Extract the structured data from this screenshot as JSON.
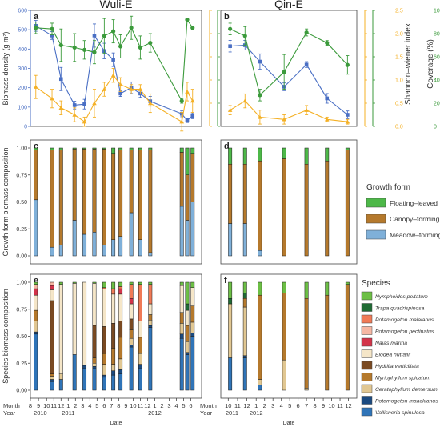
{
  "colors": {
    "density": "#4a6fc4",
    "shannon": "#f4b025",
    "coverage": "#3b9a3b",
    "floating": "#4db848",
    "canopy": "#b5792c",
    "meadow": "#7fb0d9",
    "axis": "#444444"
  },
  "chart_data": [
    {
      "id": "a",
      "panel_label": "a",
      "type": "line",
      "title": "Wuli-E",
      "ylabel": "Biomass density (g m²)",
      "y_ticks": [
        "0",
        "100",
        "200",
        "300",
        "400",
        "500",
        "600"
      ],
      "ylim": [
        0,
        600
      ],
      "series": [
        {
          "key": "density",
          "values": [
            520,
            470,
            245,
            110,
            115,
            470,
            390,
            345,
            170,
            200,
            170,
            130,
            65,
            30,
            55
          ],
          "err": [
            28,
            20,
            60,
            20,
            25,
            60,
            40,
            35,
            15,
            30,
            20,
            25,
            15,
            10,
            15
          ]
        },
        {
          "key": "shannon",
          "values": [
            0.85,
            0.6,
            0.4,
            0.25,
            0.1,
            0.5,
            0.8,
            1.1,
            0.9,
            0.8,
            0.8,
            0.5,
            0.1,
            0.75,
            0.55
          ],
          "err": [
            0.25,
            0.2,
            0.15,
            0.15,
            0.1,
            0.3,
            0.15,
            0.15,
            0.15,
            0.1,
            0.1,
            0.2,
            0.2,
            0.2,
            0.25
          ]
        },
        {
          "key": "coverage",
          "values": [
            85,
            84,
            70,
            68,
            66,
            64,
            78,
            82,
            69,
            85,
            68,
            72,
            22,
            92,
            85
          ],
          "err": [
            5,
            5,
            14,
            12,
            8,
            10,
            15,
            10,
            10,
            10,
            10,
            8,
            2,
            0,
            0
          ]
        }
      ],
      "x": [
        0,
        1.8,
        2.8,
        4.3,
        5.4,
        6.5,
        7.6,
        8.6,
        9.4,
        10.6,
        11.6,
        12.7,
        16.2,
        16.8,
        17.4
      ],
      "xlim": [
        -0.6,
        18.4
      ]
    },
    {
      "id": "b",
      "panel_label": "b",
      "type": "line",
      "title": "Qin-E",
      "ylabel": "Shannon–wiener index",
      "y2label": "Coverage (%)",
      "y_ticks": [
        "0.0",
        "0.5",
        "1.0",
        "1.5",
        "2.0",
        "2.5"
      ],
      "ylim": [
        0,
        2.5
      ],
      "y3_ticks": [
        "0",
        "20",
        "40",
        "60",
        "80",
        "100"
      ],
      "y3lim": [
        0,
        100
      ],
      "series": [
        {
          "key": "density",
          "values": [
            415,
            420,
            335,
            205,
            320,
            145,
            60
          ],
          "err": [
            30,
            25,
            40,
            20,
            15,
            25,
            20
          ]
        },
        {
          "key": "shannon",
          "values": [
            0.35,
            0.55,
            0.2,
            0.15,
            0.35,
            0.15,
            0.1
          ],
          "err": [
            0.1,
            0.15,
            0.15,
            0.1,
            0.1,
            0.05,
            0.05
          ]
        },
        {
          "key": "coverage",
          "values": [
            84,
            78,
            27,
            47,
            81,
            72,
            53
          ],
          "err": [
            5,
            8,
            5,
            15,
            3,
            2,
            8
          ]
        }
      ],
      "x": [
        0,
        0.8,
        1.6,
        2.9,
        4.1,
        5.2,
        6.3
      ],
      "xlim": [
        -0.5,
        6.8
      ]
    },
    {
      "id": "c",
      "panel_label": "c",
      "type": "bar",
      "ylabel": "Growth form biomass composition",
      "y_ticks": [
        "0.00",
        "0.25",
        "0.50",
        "0.75",
        "1.00"
      ],
      "x": [
        0,
        1.8,
        2.8,
        4.3,
        5.4,
        6.5,
        7.6,
        8.6,
        9.4,
        10.6,
        11.6,
        12.7,
        16.2,
        16.8,
        17.4
      ],
      "xlim": [
        -0.6,
        18.4
      ],
      "keys": [
        "meadow",
        "canopy",
        "floating"
      ],
      "stacks": [
        [
          0.52,
          0.46,
          0.02
        ],
        [
          0.08,
          0.9,
          0.02
        ],
        [
          0.1,
          0.88,
          0.02
        ],
        [
          0.33,
          0.66,
          0.01
        ],
        [
          0.2,
          0.79,
          0.01
        ],
        [
          0.22,
          0.77,
          0.01
        ],
        [
          0.1,
          0.89,
          0.01
        ],
        [
          0.15,
          0.8,
          0.05
        ],
        [
          0.18,
          0.8,
          0.02
        ],
        [
          0.4,
          0.58,
          0.02
        ],
        [
          0.15,
          0.83,
          0.02
        ],
        [
          0.03,
          0.95,
          0.02
        ],
        [
          0.46,
          0.5,
          0.04
        ],
        [
          0.33,
          0.42,
          0.25
        ],
        [
          0.5,
          0.45,
          0.05
        ]
      ]
    },
    {
      "id": "d",
      "panel_label": "d",
      "type": "bar",
      "x": [
        0,
        0.8,
        1.6,
        2.9,
        4.1,
        5.2,
        6.3
      ],
      "xlim": [
        -0.5,
        6.8
      ],
      "keys": [
        "meadow",
        "canopy",
        "floating"
      ],
      "stacks": [
        [
          0.3,
          0.55,
          0.15
        ],
        [
          0.3,
          0.55,
          0.15
        ],
        [
          0.05,
          0.83,
          0.12
        ],
        [
          0.0,
          0.9,
          0.1
        ],
        [
          0.0,
          0.85,
          0.15
        ],
        [
          0.0,
          0.88,
          0.12
        ],
        [
          0.0,
          0.98,
          0.02
        ]
      ]
    },
    {
      "id": "e",
      "panel_label": "e",
      "type": "bar",
      "ylabel": "Species biomass composition",
      "y_ticks": [
        "0.00",
        "0.25",
        "0.50",
        "0.75",
        "1.00"
      ],
      "x": [
        0,
        1.8,
        2.8,
        4.3,
        5.4,
        6.5,
        7.6,
        8.6,
        9.4,
        10.6,
        11.6,
        12.7,
        16.2,
        16.8,
        17.4
      ],
      "xlim": [
        -0.6,
        18.4
      ],
      "keys": [
        "vallisneria",
        "maackianus",
        "ceratophyllum",
        "myriophyllum",
        "hydrilla",
        "elodea",
        "najas",
        "pectinatus",
        "malaianus",
        "trapa",
        "nymphoides"
      ],
      "stacks": [
        [
          0.52,
          0.02,
          0.1,
          0.1,
          0.0,
          0.14,
          0.06,
          0.04,
          0.0,
          0.0,
          0.02
        ],
        [
          0.08,
          0.02,
          0.03,
          0.02,
          0.68,
          0.1,
          0.04,
          0.03,
          0.0,
          0.0,
          0.0
        ],
        [
          0.1,
          0.0,
          0.05,
          0.0,
          0.0,
          0.83,
          0.0,
          0.0,
          0.0,
          0.0,
          0.02
        ],
        [
          0.33,
          0.0,
          0.0,
          0.0,
          0.0,
          0.66,
          0.0,
          0.0,
          0.0,
          0.0,
          0.01
        ],
        [
          0.2,
          0.03,
          0.0,
          0.0,
          0.0,
          0.77,
          0.0,
          0.0,
          0.0,
          0.0,
          0.0
        ],
        [
          0.2,
          0.02,
          0.03,
          0.05,
          0.3,
          0.39,
          0.0,
          0.0,
          0.0,
          0.0,
          0.01
        ],
        [
          0.12,
          0.02,
          0.1,
          0.1,
          0.25,
          0.35,
          0.0,
          0.0,
          0.01,
          0.0,
          0.05
        ],
        [
          0.14,
          0.04,
          0.06,
          0.15,
          0.23,
          0.27,
          0.0,
          0.0,
          0.05,
          0.0,
          0.06
        ],
        [
          0.15,
          0.04,
          0.1,
          0.2,
          0.15,
          0.25,
          0.05,
          0.0,
          0.02,
          0.0,
          0.04
        ],
        [
          0.4,
          0.02,
          0.06,
          0.08,
          0.1,
          0.14,
          0.05,
          0.0,
          0.13,
          0.0,
          0.02
        ],
        [
          0.2,
          0.04,
          0.1,
          0.15,
          0.0,
          0.15,
          0.0,
          0.0,
          0.34,
          0.0,
          0.02
        ],
        [
          0.58,
          0.02,
          0.05,
          0.05,
          0.0,
          0.1,
          0.0,
          0.0,
          0.18,
          0.0,
          0.02
        ],
        [
          0.48,
          0.04,
          0.1,
          0.1,
          0.0,
          0.25,
          0.0,
          0.0,
          0.0,
          0.0,
          0.03
        ],
        [
          0.33,
          0.02,
          0.1,
          0.15,
          0.0,
          0.14,
          0.0,
          0.0,
          0.0,
          0.06,
          0.2
        ],
        [
          0.5,
          0.03,
          0.1,
          0.15,
          0.0,
          0.17,
          0.0,
          0.0,
          0.0,
          0.0,
          0.05
        ]
      ],
      "x_ticks": [
        "8",
        "9",
        "10",
        "11",
        "12",
        "1",
        "2",
        "3",
        "4",
        "5",
        "6",
        "7",
        "8",
        "9",
        "10",
        "11",
        "12",
        "1",
        "2",
        "3",
        "4",
        "5",
        "6"
      ],
      "x_tick_pos": [
        -0.6,
        0.3,
        1.2,
        2.0,
        2.8,
        3.6,
        4.4,
        5.2,
        6.0,
        6.8,
        7.6,
        8.4,
        9.2,
        10.0,
        10.8,
        11.6,
        12.4,
        13.2,
        14.0,
        14.8,
        15.6,
        16.4,
        17.2
      ],
      "year_labels": [
        {
          "t": "2010",
          "x": 0.5
        },
        {
          "t": "2011",
          "x": 3.6
        },
        {
          "t": "2012",
          "x": 13.2
        }
      ],
      "xlabel": "Date"
    },
    {
      "id": "f",
      "panel_label": "f",
      "type": "bar",
      "x": [
        0,
        0.8,
        1.6,
        2.9,
        4.1,
        5.2,
        6.3
      ],
      "xlim": [
        -0.5,
        6.8
      ],
      "keys": [
        "vallisneria",
        "maackianus",
        "ceratophyllum",
        "myriophyllum",
        "hydrilla",
        "elodea",
        "najas",
        "pectinatus",
        "malaianus",
        "trapa",
        "nymphoides"
      ],
      "stacks": [
        [
          0.3,
          0.0,
          0.5,
          0.0,
          0.0,
          0.0,
          0.0,
          0.0,
          0.0,
          0.05,
          0.15
        ],
        [
          0.3,
          0.02,
          0.45,
          0.08,
          0.0,
          0.0,
          0.0,
          0.0,
          0.0,
          0.05,
          0.1
        ],
        [
          0.05,
          0.0,
          0.05,
          0.78,
          0.0,
          0.0,
          0.0,
          0.0,
          0.0,
          0.0,
          0.12
        ],
        [
          0.0,
          0.0,
          0.28,
          0.62,
          0.0,
          0.0,
          0.0,
          0.0,
          0.0,
          0.0,
          0.1
        ],
        [
          0.0,
          0.0,
          0.02,
          0.83,
          0.0,
          0.0,
          0.0,
          0.0,
          0.0,
          0.0,
          0.15
        ],
        [
          0.0,
          0.0,
          0.0,
          0.88,
          0.0,
          0.0,
          0.0,
          0.0,
          0.0,
          0.0,
          0.12
        ],
        [
          0.0,
          0.0,
          0.0,
          0.98,
          0.0,
          0.0,
          0.0,
          0.0,
          0.0,
          0.0,
          0.02
        ]
      ],
      "x_ticks": [
        "10",
        "11",
        "12",
        "1",
        "2",
        "3",
        "4",
        "5",
        "6",
        "7",
        "8",
        "9",
        "10",
        "11",
        "12"
      ],
      "x_tick_pos": [
        -0.1,
        0.4,
        0.9,
        1.4,
        1.85,
        2.3,
        2.75,
        3.2,
        3.65,
        4.1,
        4.55,
        5.0,
        5.45,
        5.9,
        6.35
      ],
      "year_labels": [
        {
          "t": "2011",
          "x": 0.1
        },
        {
          "t": "2012",
          "x": 1.4
        }
      ],
      "xlabel": "Date"
    }
  ],
  "axis_words": {
    "month": "Month",
    "year": "Year"
  },
  "legend_growth": {
    "title": "Growth form",
    "items": [
      {
        "key": "floating",
        "label": "Floating–leaved"
      },
      {
        "key": "canopy",
        "label": "Canopy–forming"
      },
      {
        "key": "meadow",
        "label": "Meadow–forming"
      }
    ]
  },
  "legend_species": {
    "title": "Species",
    "items": [
      {
        "key": "nymphoides",
        "label": "Nymphoides peltatum",
        "color": "#6cbf45"
      },
      {
        "key": "trapa",
        "label": "Trapa quadrispinosa",
        "color": "#1f6b34"
      },
      {
        "key": "malaianus",
        "label": "Potamogeton malaianus",
        "color": "#f07a56"
      },
      {
        "key": "pectinatus",
        "label": "Potamogeton pectinatus",
        "color": "#f6b7a3"
      },
      {
        "key": "najas",
        "label": "Najas marina",
        "color": "#d3344a"
      },
      {
        "key": "elodea",
        "label": "Elodea nuttallii",
        "color": "#f5e6c8"
      },
      {
        "key": "hydrilla",
        "label": "Hydrilla verticillata",
        "color": "#7a4a22"
      },
      {
        "key": "myriophyllum",
        "label": "Myriophyllum spicatum",
        "color": "#b5792c"
      },
      {
        "key": "ceratophyllum",
        "label": "Ceratophyllum demersum",
        "color": "#e1c792"
      },
      {
        "key": "maackianus",
        "label": "Potamogeton maackianus",
        "color": "#1b4a80"
      },
      {
        "key": "vallisneria",
        "label": "Vallisneria spinulosa",
        "color": "#2f74b8"
      }
    ]
  }
}
